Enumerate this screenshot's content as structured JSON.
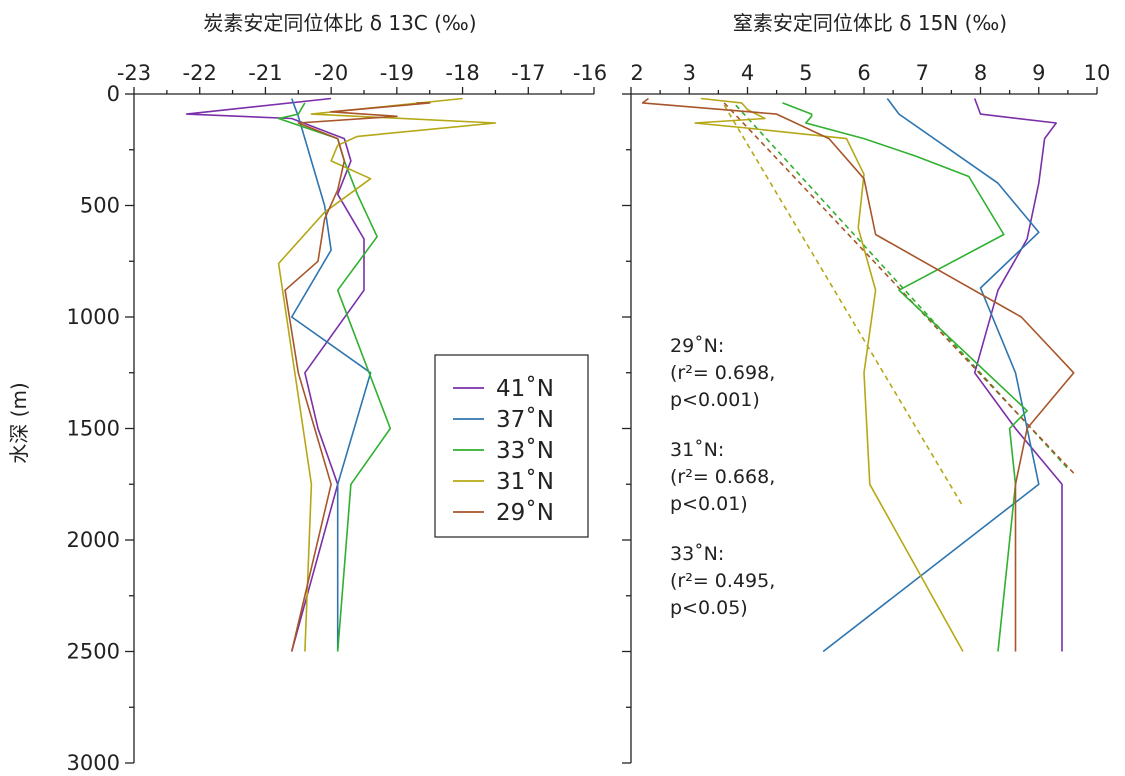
{
  "figure": {
    "ylabel": "水深 (m)",
    "legend": {
      "entries": [
        "41˚N",
        "37˚N",
        "33˚N",
        "31˚N",
        "29˚N"
      ]
    }
  },
  "colors": {
    "41N": "#7B2FA8",
    "37N": "#2E75B0",
    "33N": "#2FB02F",
    "31N": "#B5A816",
    "29N": "#A8552A"
  },
  "chart_data": [
    {
      "type": "line",
      "title": "炭素安定同位体比 δ 13C (‰)",
      "xlabel": "炭素安定同位体比 δ 13C (‰)",
      "ylabel": "水深 (m)",
      "xlim": [
        -23,
        -16
      ],
      "ylim": [
        3000,
        0
      ],
      "x_ticks": [
        "-23",
        "-22",
        "-21",
        "-20",
        "-19",
        "-18",
        "-17",
        "-16"
      ],
      "y_ticks": [
        "0",
        "500",
        "1000",
        "1500",
        "2000",
        "2500",
        "3000"
      ],
      "x_axis_position": "top",
      "series": [
        {
          "name": "41˚N",
          "color_key": "41N",
          "points": [
            [
              -20.0,
              20
            ],
            [
              -22.2,
              90
            ],
            [
              -20.6,
              110
            ],
            [
              -19.8,
              200
            ],
            [
              -19.7,
              300
            ],
            [
              -19.9,
              450
            ],
            [
              -19.5,
              650
            ],
            [
              -19.5,
              880
            ],
            [
              -20.4,
              1250
            ],
            [
              -20.2,
              1500
            ],
            [
              -19.9,
              1750
            ],
            [
              -20.6,
              2500
            ]
          ]
        },
        {
          "name": "37˚N",
          "color_key": "37N",
          "points": [
            [
              -20.6,
              20
            ],
            [
              -20.5,
              100
            ],
            [
              -20.3,
              300
            ],
            [
              -20.1,
              500
            ],
            [
              -20.0,
              700
            ],
            [
              -20.6,
              1000
            ],
            [
              -19.4,
              1250
            ],
            [
              -19.9,
              1750
            ],
            [
              -19.9,
              2500
            ]
          ]
        },
        {
          "name": "33˚N",
          "color_key": "33N",
          "points": [
            [
              -20.4,
              40
            ],
            [
              -20.5,
              90
            ],
            [
              -20.8,
              110
            ],
            [
              -19.9,
              200
            ],
            [
              -19.8,
              300
            ],
            [
              -19.6,
              450
            ],
            [
              -19.3,
              640
            ],
            [
              -19.9,
              880
            ],
            [
              -19.1,
              1500
            ],
            [
              -19.7,
              1750
            ],
            [
              -19.9,
              2500
            ]
          ]
        },
        {
          "name": "31˚N",
          "color_key": "31N",
          "points": [
            [
              -18.0,
              20
            ],
            [
              -20.3,
              90
            ],
            [
              -17.5,
              130
            ],
            [
              -19.6,
              190
            ],
            [
              -19.9,
              230
            ],
            [
              -20.0,
              300
            ],
            [
              -19.4,
              380
            ],
            [
              -20.1,
              530
            ],
            [
              -20.8,
              760
            ],
            [
              -20.3,
              1750
            ],
            [
              -20.4,
              2500
            ]
          ]
        },
        {
          "name": "29˚N",
          "color_key": "29N",
          "points": [
            [
              -18.7,
              40
            ],
            [
              -18.5,
              40
            ],
            [
              -20.0,
              80
            ],
            [
              -19.0,
              100
            ],
            [
              -20.5,
              130
            ],
            [
              -19.9,
              200
            ],
            [
              -19.8,
              300
            ],
            [
              -19.9,
              430
            ],
            [
              -20.1,
              560
            ],
            [
              -20.2,
              750
            ],
            [
              -20.7,
              880
            ],
            [
              -20.5,
              1250
            ],
            [
              -20.0,
              1750
            ],
            [
              -20.6,
              2500
            ]
          ]
        }
      ]
    },
    {
      "type": "line",
      "title": "窒素安定同位体比 δ 15N (‰)",
      "xlabel": "窒素安定同位体比 δ 15N (‰)",
      "xlim": [
        2,
        10
      ],
      "ylim": [
        3000,
        0
      ],
      "x_ticks": [
        "2",
        "3",
        "4",
        "5",
        "6",
        "7",
        "8",
        "9",
        "10"
      ],
      "x_axis_position": "top",
      "series": [
        {
          "name": "41˚N",
          "color_key": "41N",
          "points": [
            [
              7.9,
              20
            ],
            [
              8.0,
              90
            ],
            [
              9.3,
              130
            ],
            [
              9.1,
              200
            ],
            [
              9.0,
              400
            ],
            [
              8.8,
              650
            ],
            [
              8.3,
              880
            ],
            [
              7.9,
              1250
            ],
            [
              8.6,
              1500
            ],
            [
              9.4,
              1750
            ],
            [
              9.4,
              2500
            ]
          ]
        },
        {
          "name": "37˚N",
          "color_key": "37N",
          "points": [
            [
              6.4,
              20
            ],
            [
              6.6,
              90
            ],
            [
              8.3,
              400
            ],
            [
              9.0,
              620
            ],
            [
              8.0,
              870
            ],
            [
              8.6,
              1250
            ],
            [
              9.0,
              1750
            ],
            [
              5.3,
              2500
            ]
          ]
        },
        {
          "name": "33˚N",
          "color_key": "33N",
          "points": [
            [
              4.6,
              40
            ],
            [
              5.1,
              90
            ],
            [
              5.1,
              100
            ],
            [
              5.0,
              130
            ],
            [
              6.0,
              200
            ],
            [
              6.9,
              280
            ],
            [
              7.8,
              370
            ],
            [
              8.4,
              630
            ],
            [
              6.6,
              880
            ],
            [
              8.8,
              1420
            ],
            [
              8.5,
              1500
            ],
            [
              8.6,
              1750
            ],
            [
              8.3,
              2500
            ]
          ]
        },
        {
          "name": "31˚N",
          "color_key": "31N",
          "points": [
            [
              3.2,
              20
            ],
            [
              3.9,
              40
            ],
            [
              4.0,
              70
            ],
            [
              4.3,
              110
            ],
            [
              3.1,
              130
            ],
            [
              3.9,
              150
            ],
            [
              5.7,
              200
            ],
            [
              6.0,
              360
            ],
            [
              5.9,
              600
            ],
            [
              6.2,
              880
            ],
            [
              6.0,
              1250
            ],
            [
              6.1,
              1750
            ],
            [
              7.7,
              2500
            ]
          ]
        },
        {
          "name": "29˚N",
          "color_key": "29N",
          "points": [
            [
              2.3,
              20
            ],
            [
              2.2,
              40
            ],
            [
              4.5,
              90
            ],
            [
              5.4,
              200
            ],
            [
              6.0,
              380
            ],
            [
              6.2,
              630
            ],
            [
              8.7,
              1000
            ],
            [
              9.6,
              1250
            ],
            [
              8.8,
              1500
            ],
            [
              8.6,
              1750
            ],
            [
              8.6,
              2500
            ]
          ]
        }
      ],
      "trendlines": [
        {
          "series": "31˚N",
          "color_key": "31N",
          "from": [
            3.6,
            50
          ],
          "to": [
            7.7,
            1850
          ]
        },
        {
          "series": "33˚N",
          "color_key": "33N",
          "from": [
            3.8,
            50
          ],
          "to": [
            9.5,
            1680
          ]
        },
        {
          "series": "29˚N",
          "color_key": "29N",
          "from": [
            3.6,
            40
          ],
          "to": [
            9.6,
            1700
          ]
        }
      ],
      "annotations": [
        {
          "series": "29˚N",
          "lines": [
            "29˚N:",
            "(r²= 0.698,",
            "p<0.001)"
          ]
        },
        {
          "series": "31˚N",
          "lines": [
            "31˚N:",
            "(r²= 0.668,",
            "p<0.01)"
          ]
        },
        {
          "series": "33˚N",
          "lines": [
            "33˚N:",
            "(r²= 0.495,",
            "p<0.05)"
          ]
        }
      ]
    }
  ]
}
